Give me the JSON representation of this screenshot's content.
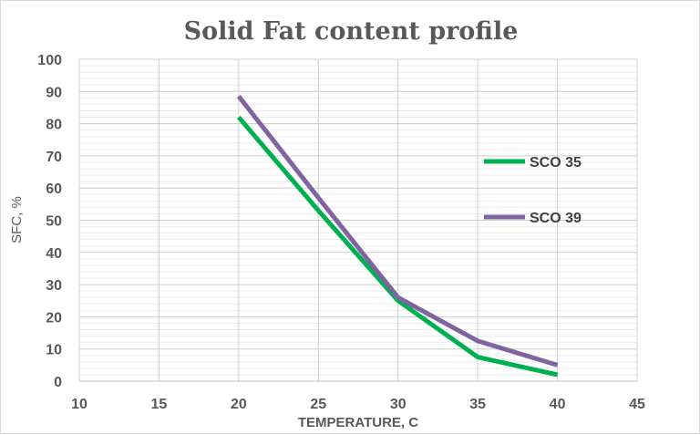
{
  "chart_data": {
    "type": "line",
    "title": "Solid Fat content profile",
    "xlabel": "TEMPERATURE, C",
    "ylabel": "SFC, %",
    "xlim": [
      10,
      45
    ],
    "ylim": [
      0,
      100
    ],
    "x_ticks": [
      10,
      15,
      20,
      25,
      30,
      35,
      40,
      45
    ],
    "y_ticks": [
      0,
      10,
      20,
      30,
      40,
      50,
      60,
      70,
      80,
      90,
      100
    ],
    "minor_grid_step": 2,
    "grid": true,
    "legend_position": "right",
    "series": [
      {
        "name": "SCO 35",
        "color": "#00b050",
        "x": [
          20,
          25,
          30,
          35,
          40
        ],
        "y": [
          82,
          53,
          25,
          7.5,
          2
        ]
      },
      {
        "name": "SCO 39",
        "color": "#8064a2",
        "x": [
          20,
          25,
          30,
          35,
          40
        ],
        "y": [
          88.5,
          57,
          26,
          12.5,
          5
        ]
      }
    ]
  }
}
